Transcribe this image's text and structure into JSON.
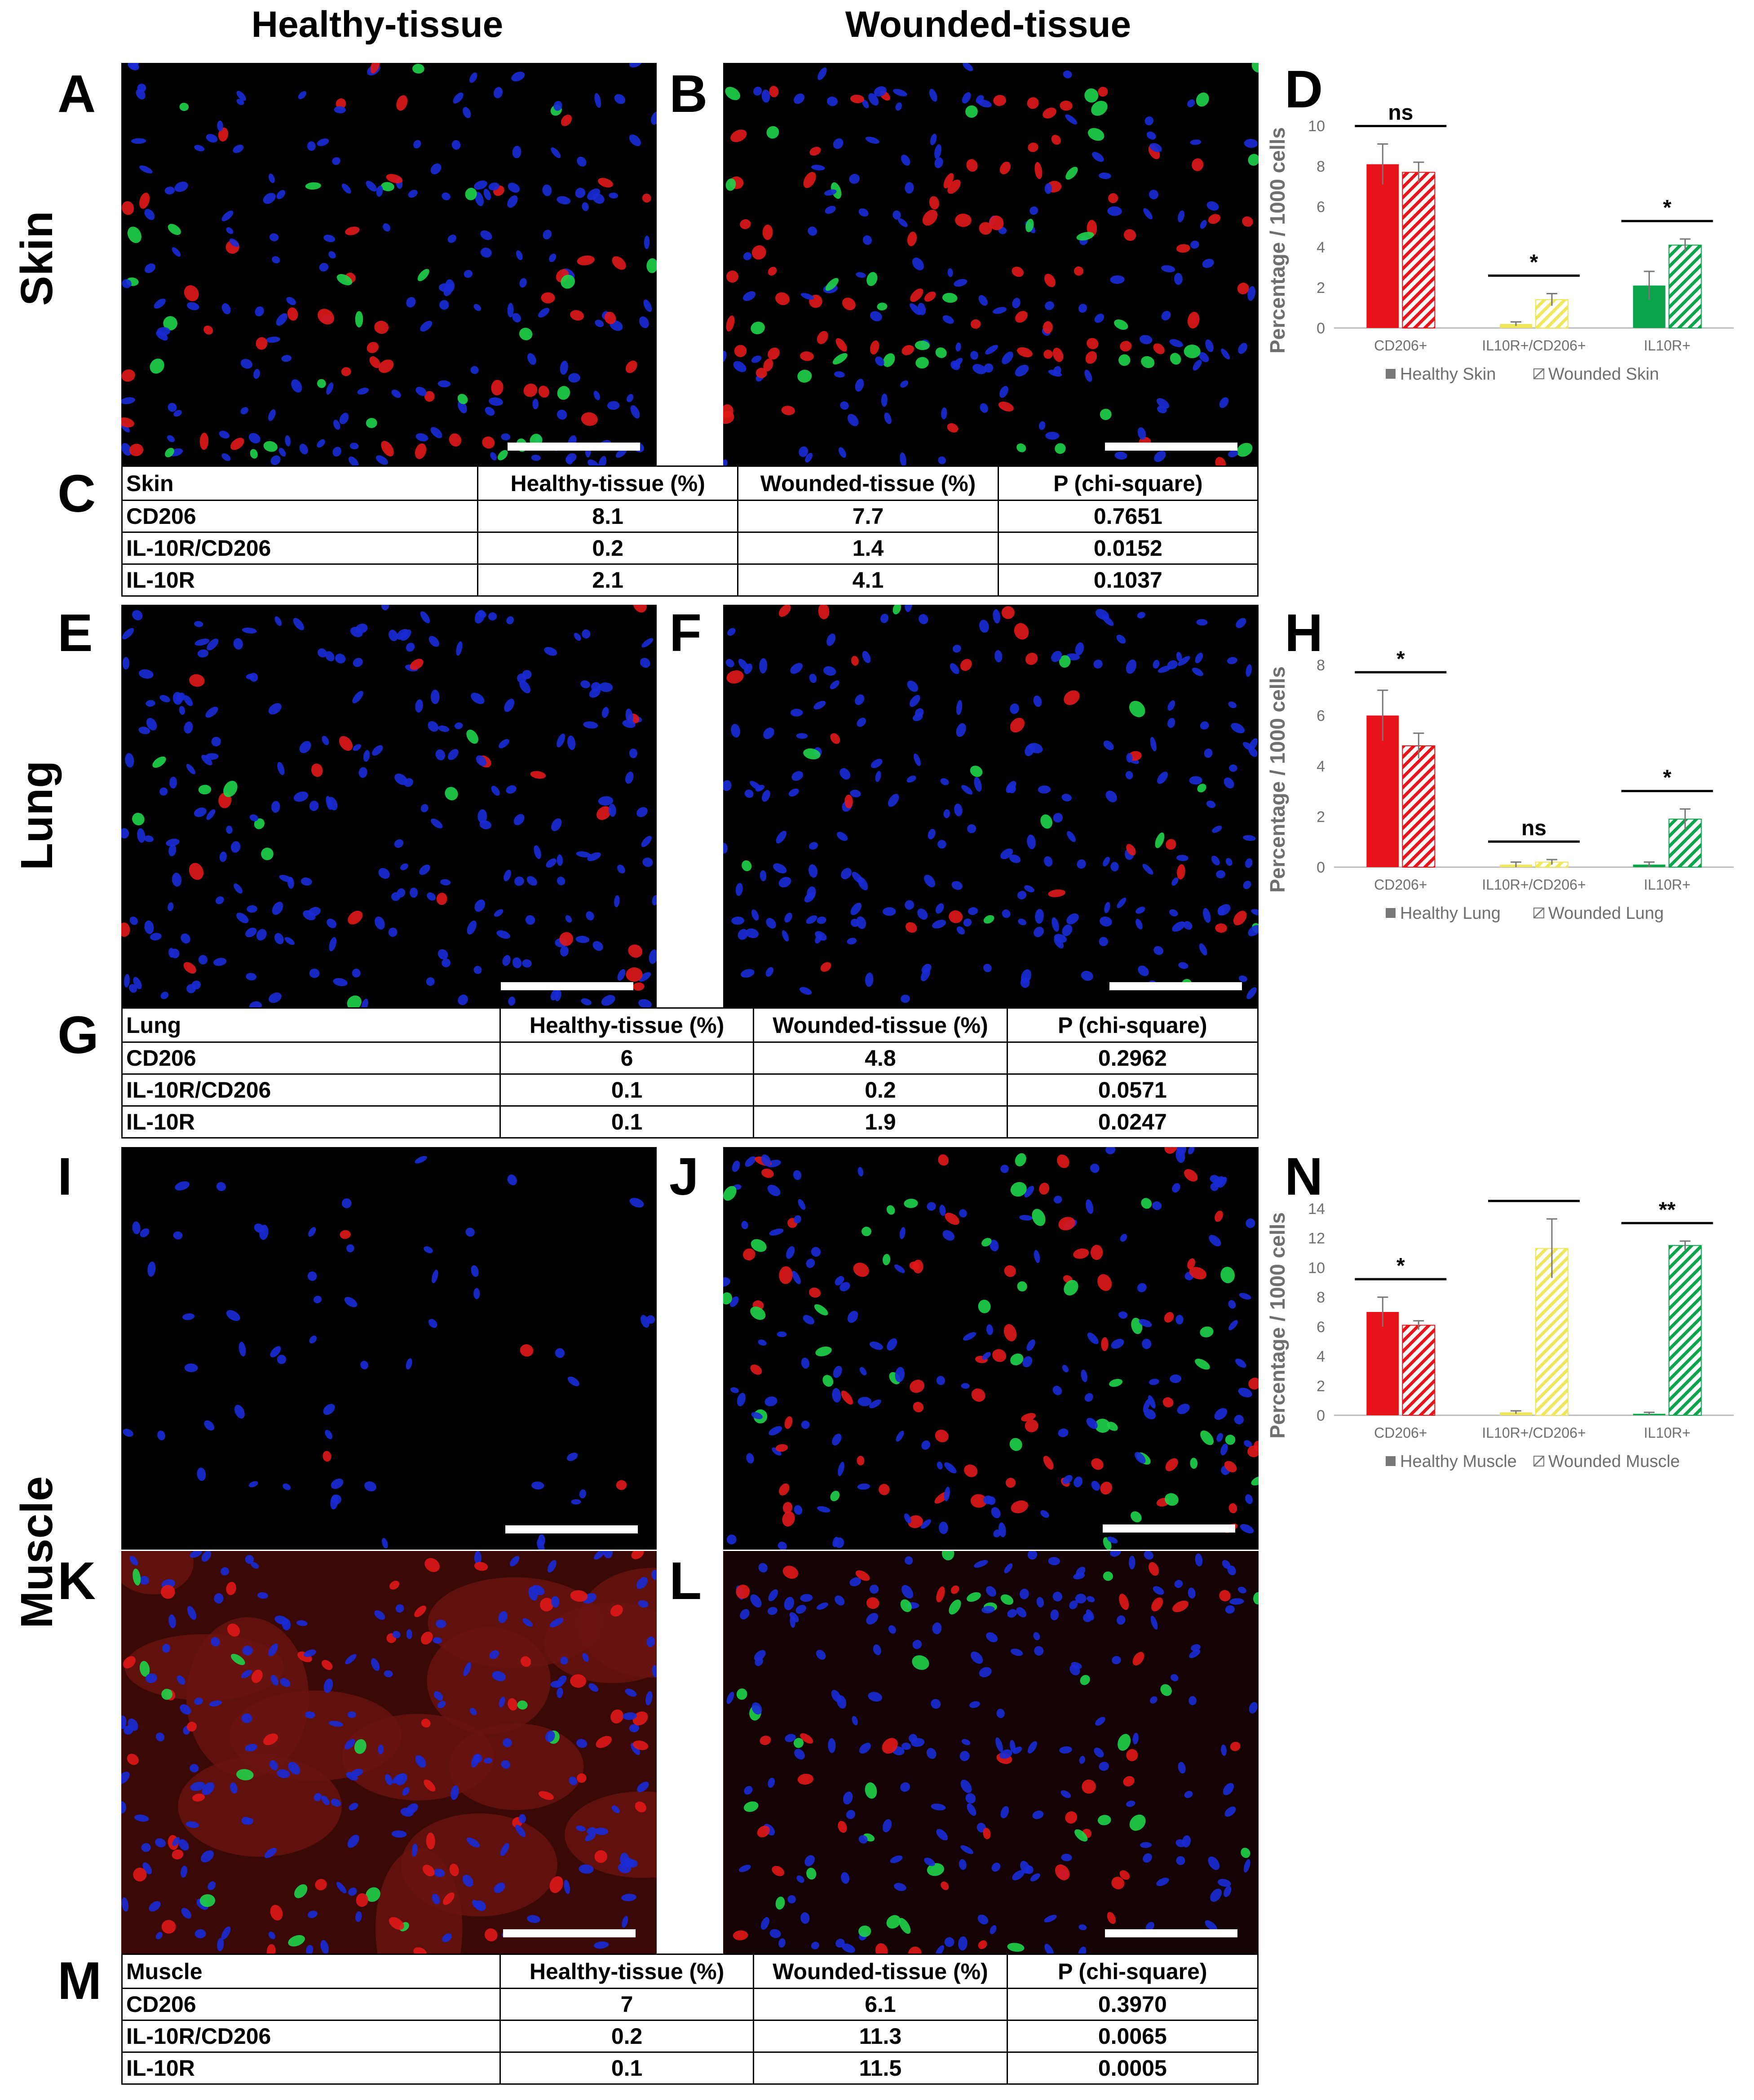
{
  "column_headers": [
    "Healthy-tissue",
    "Wounded-tissue"
  ],
  "row_headers": [
    "Skin",
    "Lung",
    "Muscle"
  ],
  "panel_letters": [
    "A",
    "B",
    "C",
    "D",
    "E",
    "F",
    "G",
    "H",
    "I",
    "J",
    "K",
    "L",
    "M",
    "N"
  ],
  "colors": {
    "cd206": "#e8141b",
    "il10r_cd206": "#efe75b",
    "il10r": "#0aa44a",
    "axis": "#888888",
    "text_gray": "#6f6f6f"
  },
  "tables": {
    "skin": {
      "header": [
        "Skin",
        "Healthy-tissue (%)",
        "Wounded-tissue (%)",
        "P (chi-square)"
      ],
      "rows": [
        [
          "CD206",
          "8.1",
          "7.7",
          "0.7651"
        ],
        [
          "IL-10R/CD206",
          "0.2",
          "1.4",
          "0.0152"
        ],
        [
          "IL-10R",
          "2.1",
          "4.1",
          "0.1037"
        ]
      ]
    },
    "lung": {
      "header": [
        "Lung",
        "Healthy-tissue (%)",
        "Wounded-tissue (%)",
        "P (chi-square)"
      ],
      "rows": [
        [
          "CD206",
          "6",
          "4.8",
          "0.2962"
        ],
        [
          "IL-10R/CD206",
          "0.1",
          "0.2",
          "0.0571"
        ],
        [
          "IL-10R",
          "0.1",
          "1.9",
          "0.0247"
        ]
      ]
    },
    "muscle": {
      "header": [
        "Muscle",
        "Healthy-tissue (%)",
        "Wounded-tissue (%)",
        "P (chi-square)"
      ],
      "rows": [
        [
          "CD206",
          "7",
          "6.1",
          "0.3970"
        ],
        [
          "IL-10R/CD206",
          "0.2",
          "11.3",
          "0.0065"
        ],
        [
          "IL-10R",
          "0.1",
          "11.5",
          "0.0005"
        ]
      ]
    }
  },
  "chart_data": [
    {
      "type": "bar",
      "panel": "D",
      "categories": [
        "CD206+",
        "IL10R+/CD206+",
        "IL10R+"
      ],
      "series": [
        {
          "name": "Healthy Skin",
          "values": [
            8.1,
            0.2,
            2.1
          ],
          "errors": [
            1.0,
            0.1,
            0.7
          ]
        },
        {
          "name": "Wounded Skin",
          "values": [
            7.7,
            1.4,
            4.1
          ],
          "errors": [
            0.5,
            0.3,
            0.3
          ]
        }
      ],
      "ylabel": "Percentage / 1000 cells",
      "ylim": [
        0,
        10
      ],
      "yticks": [
        "0",
        "2",
        "4",
        "6",
        "8",
        "10"
      ],
      "significance": [
        "ns",
        "*",
        "*"
      ],
      "legend": [
        "Healthy Skin",
        "Wounded Skin"
      ],
      "legend_position": "bottom"
    },
    {
      "type": "bar",
      "panel": "H",
      "categories": [
        "CD206+",
        "IL10R+/CD206+",
        "IL10R+"
      ],
      "series": [
        {
          "name": "Healthy Lung",
          "values": [
            6.0,
            0.1,
            0.1
          ],
          "errors": [
            1.0,
            0.1,
            0.1
          ]
        },
        {
          "name": "Wounded Lung",
          "values": [
            4.8,
            0.2,
            1.9
          ],
          "errors": [
            0.5,
            0.1,
            0.4
          ]
        }
      ],
      "ylabel": "Percentage / 1000 cells",
      "ylim": [
        0,
        8
      ],
      "yticks": [
        "0",
        "2",
        "4",
        "6",
        "8"
      ],
      "significance": [
        "*",
        "ns",
        "*"
      ],
      "legend": [
        "Healthy Lung",
        "Wounded Lung"
      ],
      "legend_position": "bottom"
    },
    {
      "type": "bar",
      "panel": "N",
      "categories": [
        "CD206+",
        "IL10R+/CD206+",
        "IL10R+"
      ],
      "series": [
        {
          "name": "Healthy Muscle",
          "values": [
            7.0,
            0.2,
            0.1
          ],
          "errors": [
            1.0,
            0.1,
            0.1
          ]
        },
        {
          "name": "Wounded Muscle",
          "values": [
            6.1,
            11.3,
            11.5
          ],
          "errors": [
            0.3,
            2.0,
            0.3
          ]
        }
      ],
      "ylabel": "Percentage / 1000 cells",
      "ylim": [
        0,
        14
      ],
      "yticks": [
        "0",
        "2",
        "4",
        "6",
        "8",
        "10",
        "12",
        "14"
      ],
      "significance": [
        "*",
        "**",
        "**"
      ],
      "legend": [
        "Healthy Muscle",
        "Wounded Muscle"
      ],
      "legend_position": "bottom"
    }
  ]
}
